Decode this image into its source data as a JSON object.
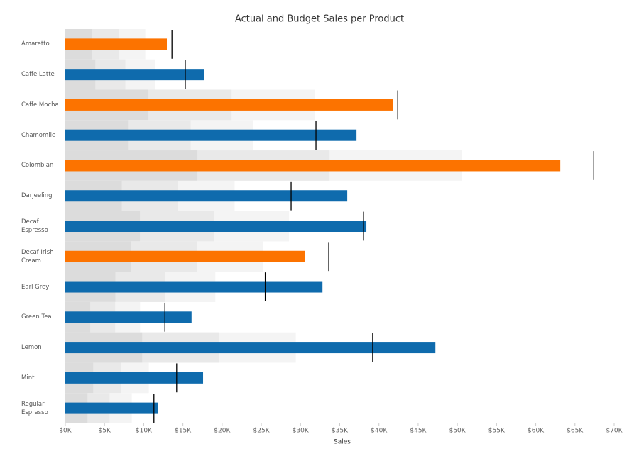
{
  "chart_data": {
    "type": "bullet",
    "title": "Actual and Budget Sales per Product",
    "x_label": "Sales",
    "categories": [
      "Amaretto",
      "Caffe Latte",
      "Caffe Mocha",
      "Chamomile",
      "Colombian",
      "Darjeeling",
      "Decaf Espresso",
      "Decaf Irish Cream",
      "Earl Grey",
      "Green Tea",
      "Lemon",
      "Mint",
      "Regular Espresso"
    ],
    "values": [
      12950,
      17660,
      41760,
      37140,
      63130,
      35960,
      38400,
      30600,
      32800,
      16100,
      47200,
      17570,
      11800
    ],
    "bar_colors": [
      "#fc7300",
      "#0f6bad",
      "#fc7300",
      "#0f6bad",
      "#fc7300",
      "#0f6bad",
      "#0f6bad",
      "#fc7300",
      "#0f6bad",
      "#0f6bad",
      "#0f6bad",
      "#0f6bad",
      "#0f6bad"
    ],
    "targets": [
      13600,
      15300,
      42400,
      31970,
      67400,
      28800,
      38040,
      33600,
      25500,
      12700,
      39200,
      14200,
      11300
    ],
    "target_color": "#000000",
    "bands": [
      [
        3400,
        3825,
        10600,
        7990,
        16850,
        7200,
        9510,
        8400,
        6380,
        3180,
        9800,
        3550,
        2830
      ],
      [
        6800,
        7650,
        21200,
        15990,
        33700,
        14400,
        19020,
        16800,
        12750,
        6350,
        19600,
        7100,
        5650
      ],
      [
        10200,
        11475,
        31800,
        23980,
        50550,
        21600,
        28530,
        25200,
        19130,
        9530,
        29400,
        10650,
        8480
      ]
    ],
    "band_colors": [
      "#dcdcdc",
      "#e9e9e9",
      "#f4f4f4"
    ],
    "xlim": [
      0,
      70000
    ],
    "xticks": [
      {
        "value": 0,
        "label": "$0K"
      },
      {
        "value": 5000,
        "label": "$5K"
      },
      {
        "value": 10000,
        "label": "$10K"
      },
      {
        "value": 15000,
        "label": "$15K"
      },
      {
        "value": 20000,
        "label": "$20K"
      },
      {
        "value": 25000,
        "label": "$25K"
      },
      {
        "value": 30000,
        "label": "$30K"
      },
      {
        "value": 35000,
        "label": "$35K"
      },
      {
        "value": 40000,
        "label": "$40K"
      },
      {
        "value": 45000,
        "label": "$45K"
      },
      {
        "value": 50000,
        "label": "$50K"
      },
      {
        "value": 55000,
        "label": "$55K"
      },
      {
        "value": 60000,
        "label": "$60K"
      },
      {
        "value": 65000,
        "label": "$65K"
      },
      {
        "value": 70000,
        "label": "$70K"
      }
    ]
  }
}
